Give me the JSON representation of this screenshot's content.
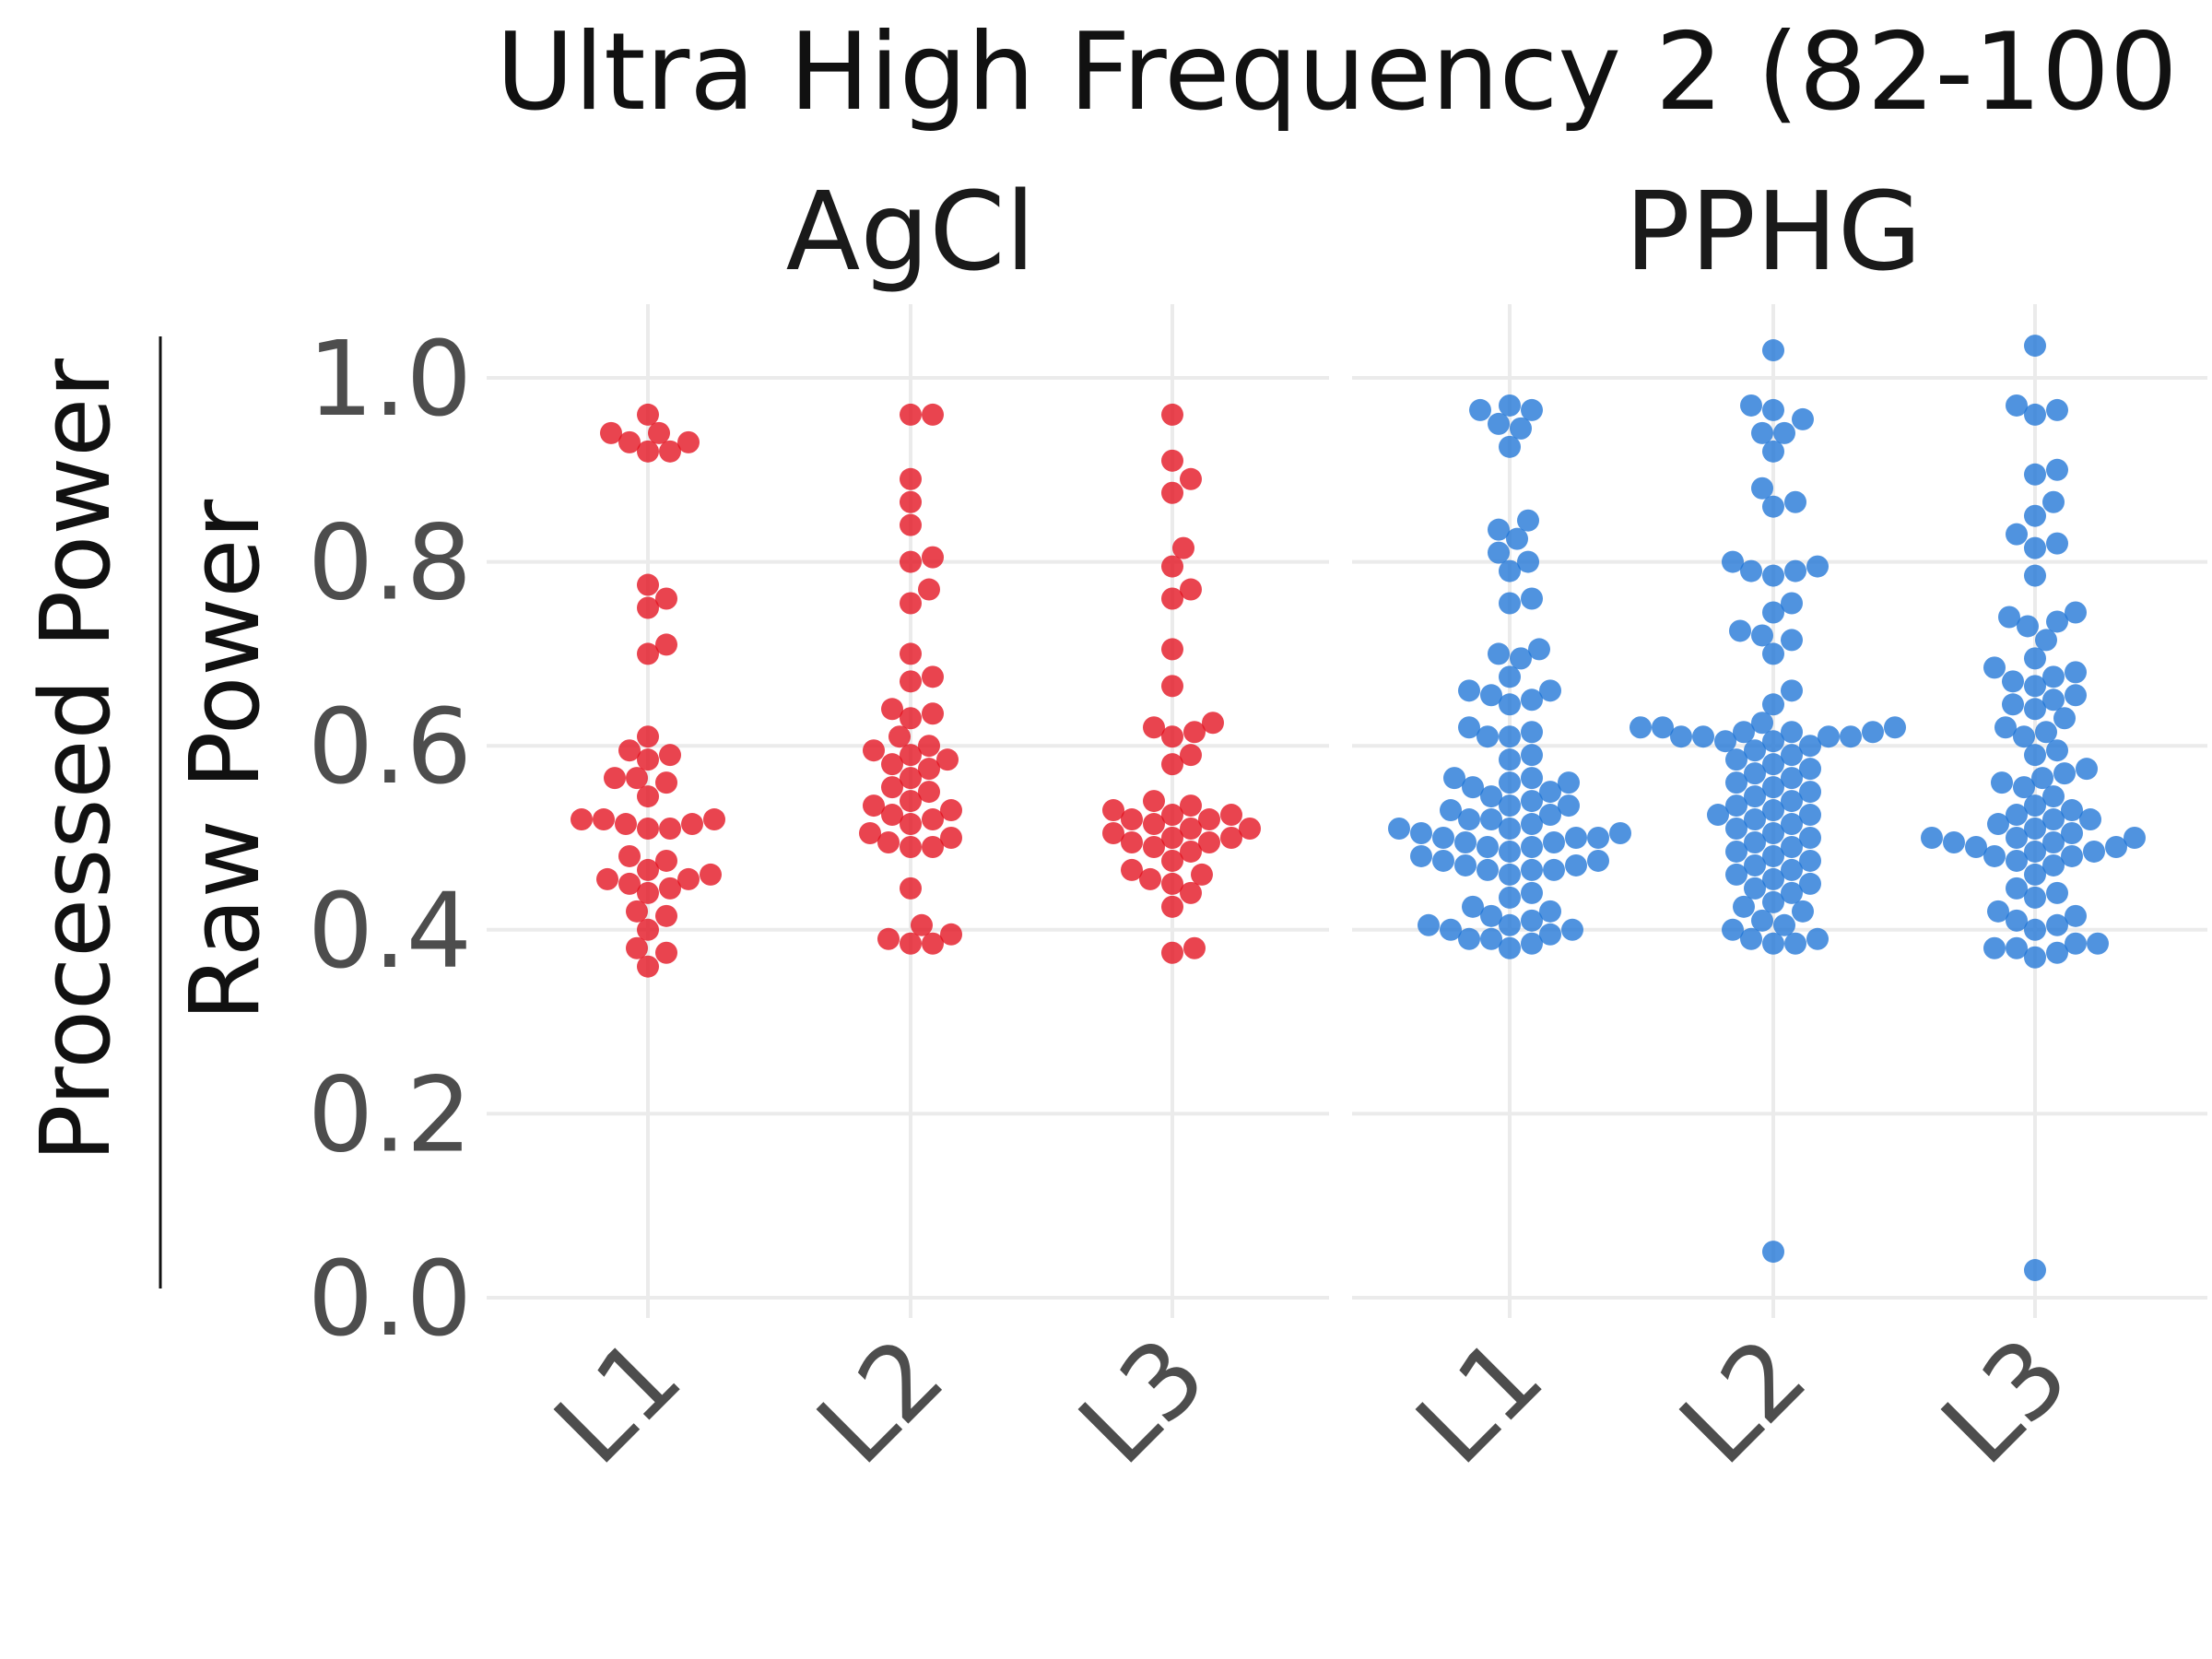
{
  "chart_data": {
    "type": "scatter",
    "title": "Ultra High Frequency 2 (82-100",
    "ylabel_numerator": "Processed Power",
    "ylabel_denominator": "Raw Power",
    "ylim": [
      0,
      1.05
    ],
    "yticks": [
      "0.0",
      "0.2",
      "0.4",
      "0.6",
      "0.8",
      "1.0"
    ],
    "categories": [
      "L1",
      "L2",
      "L3"
    ],
    "grid": true,
    "panels": [
      {
        "name": "AgCl",
        "color": "#e3101e",
        "groups": [
          {
            "category": "L1",
            "values": [
              0.96,
              0.94,
              0.94,
              0.93,
              0.93,
              0.92,
              0.92,
              0.775,
              0.76,
              0.75,
              0.71,
              0.7,
              0.61,
              0.595,
              0.59,
              0.585,
              0.565,
              0.565,
              0.56,
              0.545,
              0.52,
              0.52,
              0.52,
              0.515,
              0.515,
              0.51,
              0.51,
              0.48,
              0.475,
              0.465,
              0.46,
              0.455,
              0.455,
              0.45,
              0.445,
              0.44,
              0.42,
              0.415,
              0.4,
              0.38,
              0.375,
              0.36
            ]
          },
          {
            "category": "L2",
            "values": [
              0.96,
              0.96,
              0.89,
              0.865,
              0.84,
              0.805,
              0.8,
              0.77,
              0.755,
              0.7,
              0.675,
              0.67,
              0.64,
              0.635,
              0.63,
              0.61,
              0.6,
              0.595,
              0.59,
              0.585,
              0.58,
              0.575,
              0.565,
              0.555,
              0.55,
              0.54,
              0.535,
              0.53,
              0.525,
              0.52,
              0.515,
              0.505,
              0.5,
              0.495,
              0.49,
              0.49,
              0.445,
              0.405,
              0.395,
              0.39,
              0.385,
              0.385
            ]
          },
          {
            "category": "L3",
            "values": [
              0.96,
              0.91,
              0.89,
              0.875,
              0.815,
              0.795,
              0.77,
              0.76,
              0.705,
              0.665,
              0.625,
              0.62,
              0.615,
              0.61,
              0.59,
              0.58,
              0.54,
              0.535,
              0.53,
              0.525,
              0.525,
              0.52,
              0.52,
              0.515,
              0.51,
              0.51,
              0.505,
              0.5,
              0.5,
              0.495,
              0.495,
              0.49,
              0.485,
              0.475,
              0.465,
              0.46,
              0.455,
              0.45,
              0.44,
              0.425,
              0.38,
              0.375
            ]
          }
        ]
      },
      {
        "name": "PPHG",
        "color": "#1f74d6",
        "groups": [
          {
            "category": "L1",
            "values": [
              0.97,
              0.965,
              0.965,
              0.95,
              0.945,
              0.925,
              0.845,
              0.835,
              0.825,
              0.81,
              0.8,
              0.79,
              0.76,
              0.755,
              0.705,
              0.7,
              0.695,
              0.675,
              0.66,
              0.66,
              0.655,
              0.65,
              0.645,
              0.62,
              0.615,
              0.61,
              0.61,
              0.59,
              0.585,
              0.565,
              0.565,
              0.56,
              0.56,
              0.555,
              0.55,
              0.545,
              0.54,
              0.535,
              0.535,
              0.53,
              0.525,
              0.52,
              0.52,
              0.515,
              0.51,
              0.51,
              0.505,
              0.505,
              0.5,
              0.5,
              0.5,
              0.495,
              0.495,
              0.49,
              0.49,
              0.485,
              0.48,
              0.475,
              0.475,
              0.47,
              0.47,
              0.465,
              0.465,
              0.465,
              0.46,
              0.44,
              0.435,
              0.425,
              0.42,
              0.415,
              0.41,
              0.405,
              0.405,
              0.4,
              0.4,
              0.395,
              0.39,
              0.39,
              0.385,
              0.38
            ]
          },
          {
            "category": "L2",
            "values": [
              1.03,
              0.97,
              0.965,
              0.955,
              0.94,
              0.94,
              0.92,
              0.88,
              0.865,
              0.86,
              0.8,
              0.795,
              0.79,
              0.79,
              0.785,
              0.755,
              0.745,
              0.725,
              0.72,
              0.715,
              0.7,
              0.66,
              0.645,
              0.625,
              0.62,
              0.62,
              0.62,
              0.615,
              0.615,
              0.615,
              0.61,
              0.61,
              0.61,
              0.61,
              0.605,
              0.605,
              0.6,
              0.595,
              0.59,
              0.585,
              0.58,
              0.575,
              0.57,
              0.565,
              0.56,
              0.555,
              0.55,
              0.545,
              0.54,
              0.535,
              0.53,
              0.525,
              0.525,
              0.52,
              0.515,
              0.51,
              0.505,
              0.5,
              0.495,
              0.49,
              0.485,
              0.48,
              0.475,
              0.47,
              0.465,
              0.46,
              0.455,
              0.45,
              0.445,
              0.44,
              0.43,
              0.425,
              0.42,
              0.41,
              0.405,
              0.4,
              0.39,
              0.39,
              0.385,
              0.385,
              0.05
            ]
          },
          {
            "category": "L3",
            "values": [
              1.035,
              0.97,
              0.965,
              0.96,
              0.9,
              0.895,
              0.865,
              0.85,
              0.83,
              0.82,
              0.815,
              0.785,
              0.745,
              0.74,
              0.735,
              0.73,
              0.715,
              0.695,
              0.685,
              0.68,
              0.675,
              0.67,
              0.665,
              0.655,
              0.65,
              0.645,
              0.64,
              0.63,
              0.62,
              0.615,
              0.61,
              0.595,
              0.59,
              0.575,
              0.57,
              0.565,
              0.56,
              0.555,
              0.545,
              0.535,
              0.53,
              0.525,
              0.52,
              0.52,
              0.515,
              0.51,
              0.505,
              0.5,
              0.5,
              0.5,
              0.495,
              0.495,
              0.49,
              0.49,
              0.485,
              0.485,
              0.48,
              0.48,
              0.475,
              0.47,
              0.46,
              0.445,
              0.44,
              0.435,
              0.42,
              0.415,
              0.41,
              0.405,
              0.4,
              0.385,
              0.385,
              0.38,
              0.38,
              0.375,
              0.37,
              0.03
            ]
          }
        ]
      }
    ]
  }
}
